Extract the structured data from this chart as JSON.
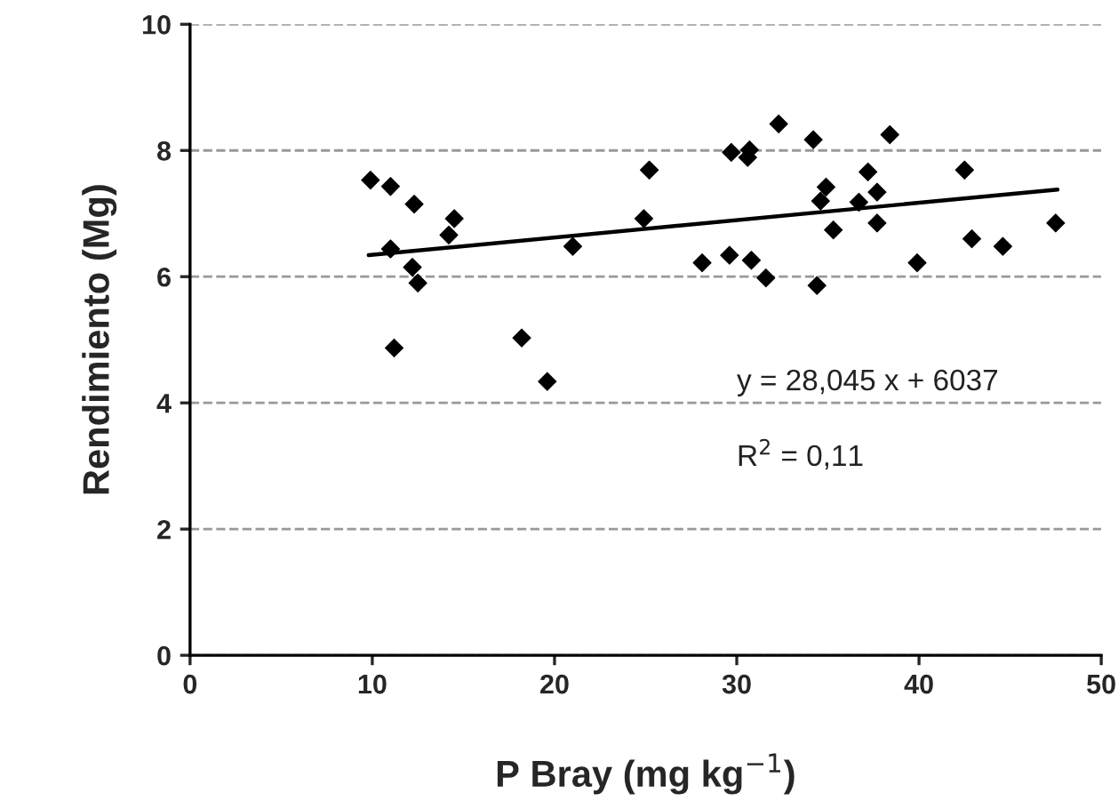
{
  "chart_data": {
    "type": "scatter",
    "xlabel": "P Bray (mg kg$^{−1}$)",
    "ylabel": "Rendimiento (Mg)",
    "xlim": [
      0,
      50
    ],
    "xticks": [
      0,
      10,
      20,
      30,
      40,
      50
    ],
    "ylim": [
      0,
      10
    ],
    "yticks": [
      0,
      2,
      4,
      6,
      8,
      10
    ],
    "grid": "y",
    "legend": false,
    "marker": "diamond",
    "annotations": [
      "y = 28,045 x + 6037",
      "R$^{2}$ = 0,11"
    ],
    "series": [
      {
        "color": "#000000",
        "x": [
          9.9,
          11.0,
          12.3,
          11.0,
          12.2,
          12.5,
          11.2,
          14.5,
          14.2,
          18.2,
          19.6,
          21.0,
          24.9,
          25.2,
          28.1,
          29.6,
          29.7,
          30.7,
          30.6,
          30.8,
          31.6,
          32.3,
          34.2,
          34.4,
          34.6,
          34.9,
          35.3,
          36.7,
          37.2,
          37.7,
          37.7,
          38.4,
          39.9,
          42.5,
          42.9,
          44.6,
          47.5
        ],
        "values": [
          7.53,
          7.43,
          7.15,
          6.44,
          6.15,
          5.9,
          4.87,
          6.92,
          6.66,
          5.03,
          4.34,
          6.48,
          6.92,
          7.69,
          6.22,
          6.34,
          7.97,
          8.01,
          7.89,
          6.26,
          5.98,
          8.42,
          8.17,
          5.86,
          7.2,
          7.42,
          6.74,
          7.18,
          7.66,
          7.34,
          6.85,
          8.25,
          6.22,
          7.69,
          6.6,
          6.48,
          6.85
        ]
      },
      {
        "type": "line",
        "color": "#000000",
        "x": [
          9.8,
          47.6
        ],
        "values": [
          6.34,
          7.38
        ],
        "marker": "none",
        "line_style": "solid"
      }
    ]
  }
}
